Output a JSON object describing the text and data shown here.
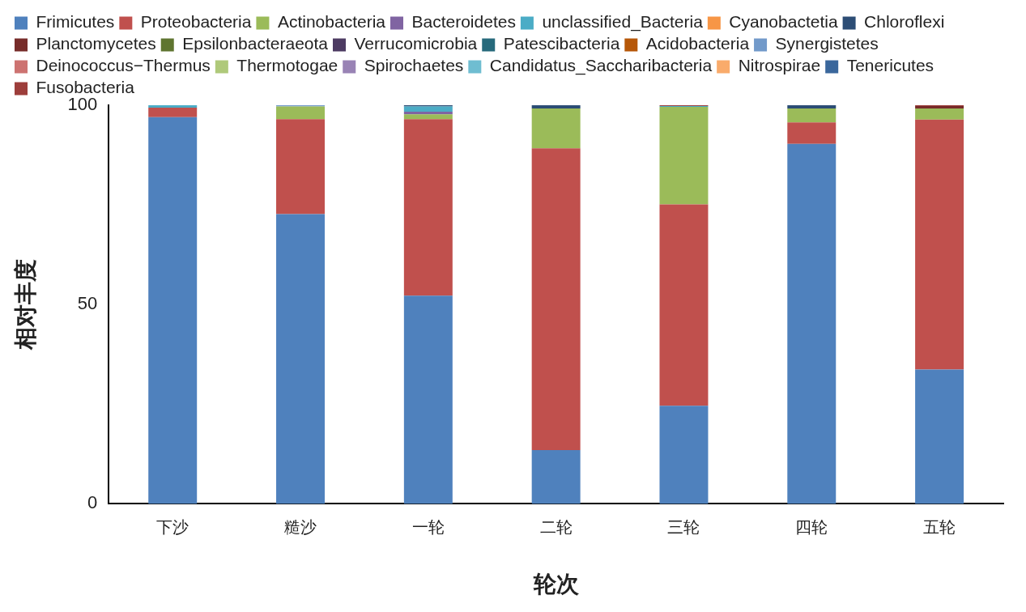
{
  "chart_data": {
    "type": "bar",
    "stacked": true,
    "xlabel": "轮次",
    "ylabel": "相对丰度",
    "categories": [
      "下沙",
      "糙沙",
      "一轮",
      "二轮",
      "三轮",
      "四轮",
      "五轮"
    ],
    "ylim": [
      0,
      100
    ],
    "yticks": [
      0,
      50,
      100
    ],
    "grid": false,
    "legend": "top",
    "series": [
      {
        "name": "Frimicutes",
        "color": "#4f81bd",
        "values": [
          97.0,
          72.7,
          52.2,
          13.5,
          24.6,
          90.3,
          33.7
        ]
      },
      {
        "name": "Proteobacteria",
        "color": "#c0504d",
        "values": [
          2.4,
          23.8,
          44.3,
          75.7,
          50.5,
          5.4,
          62.7
        ]
      },
      {
        "name": "Actinobacteria",
        "color": "#9bbb59",
        "values": [
          0,
          3.2,
          1.2,
          10.0,
          24.5,
          3.5,
          2.8
        ]
      },
      {
        "name": "Bacteroidetes",
        "color": "#8064a2",
        "values": [
          0,
          0,
          0.7,
          0,
          0,
          0,
          0
        ]
      },
      {
        "name": "unclassified_Bacteria",
        "color": "#4bacc6",
        "values": [
          0.6,
          0,
          1.3,
          0,
          0.2,
          0,
          0
        ]
      },
      {
        "name": "Cyanobactetia",
        "color": "#f79646",
        "values": [
          0,
          0,
          0,
          0,
          0,
          0,
          0
        ]
      },
      {
        "name": "Chloroflexi",
        "color": "#2c4d75",
        "values": [
          0,
          0,
          0.3,
          0.8,
          0,
          0.8,
          0
        ]
      },
      {
        "name": "Planctomycetes",
        "color": "#772c2a",
        "values": [
          0,
          0,
          0,
          0,
          0,
          0,
          0.6
        ]
      },
      {
        "name": "Epsilonbacteraeota",
        "color": "#5f7530",
        "values": [
          0,
          0,
          0,
          0,
          0,
          0,
          0
        ]
      },
      {
        "name": "Verrucomicrobia",
        "color": "#4d3b62",
        "values": [
          0,
          0,
          0,
          0,
          0,
          0,
          0
        ]
      },
      {
        "name": "Patescibacteria",
        "color": "#276a7c",
        "values": [
          0,
          0,
          0,
          0,
          0,
          0,
          0
        ]
      },
      {
        "name": "Acidobacteria",
        "color": "#b65708",
        "values": [
          0,
          0,
          0,
          0,
          0,
          0,
          0
        ]
      },
      {
        "name": "Synergistetes",
        "color": "#729aca",
        "values": [
          0,
          0.3,
          0,
          0,
          0,
          0,
          0
        ]
      },
      {
        "name": "Deinococcus−Thermus",
        "color": "#cd7371",
        "values": [
          0,
          0,
          0,
          0,
          0,
          0,
          0
        ]
      },
      {
        "name": "Thermotogae",
        "color": "#afc97a",
        "values": [
          0,
          0,
          0,
          0,
          0,
          0,
          0
        ]
      },
      {
        "name": "Spirochaetes",
        "color": "#9983b5",
        "values": [
          0,
          0,
          0,
          0,
          0,
          0,
          0
        ]
      },
      {
        "name": "Candidatus_Saccharibacteria",
        "color": "#6fbdd1",
        "values": [
          0,
          0,
          0,
          0,
          0,
          0,
          0
        ]
      },
      {
        "name": "Nitrospirae",
        "color": "#f9ab6b",
        "values": [
          0,
          0,
          0,
          0,
          0,
          0,
          0
        ]
      },
      {
        "name": "Tenericutes",
        "color": "#3a679c",
        "values": [
          0,
          0,
          0,
          0,
          0,
          0,
          0
        ]
      },
      {
        "name": "Fusobacteria",
        "color": "#9d3e3b",
        "values": [
          0,
          0,
          0,
          0,
          0.2,
          0,
          0.2
        ]
      }
    ]
  }
}
